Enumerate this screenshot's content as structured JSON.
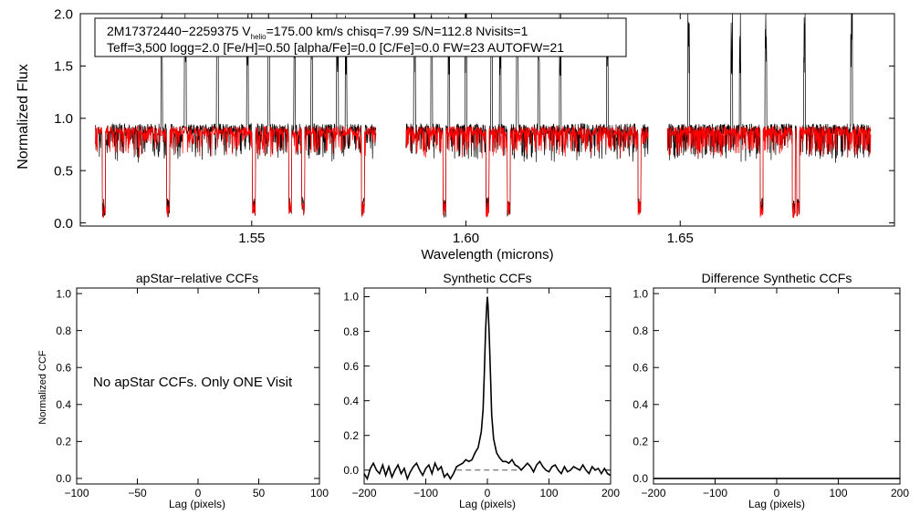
{
  "colors": {
    "axis": "#000000",
    "observed": "#000000",
    "model": "#ff0000",
    "dashed": "#555555"
  },
  "chart_data": [
    {
      "id": "spectrum",
      "type": "line",
      "title": "",
      "xlabel": "Wavelength (microns)",
      "ylabel": "Normalized Flux",
      "xlim": [
        1.51,
        1.7
      ],
      "ylim": [
        -0.03,
        2.0
      ],
      "xticks": [
        1.55,
        1.6,
        1.65
      ],
      "xtick_labels": [
        "1.55",
        "1.60",
        "1.65"
      ],
      "yticks": [
        0.0,
        0.5,
        1.0,
        1.5,
        2.0
      ],
      "ytick_labels": [
        "0.0",
        "0.5",
        "1.0",
        "1.5",
        "2.0"
      ],
      "info_box": {
        "line1_prefix": "2M17372440−2259375  V",
        "line1_sub": "helio",
        "line1_suffix": "=175.00 km/s  chisq=7.99  S/N=112.8  Nvisits=1",
        "line2": "Teff=3,500 logg=2.0 [Fe/H]=0.50 [alpha/Fe]=0.0 [C/Fe]=0.0 FW=23 AUTOFW=21"
      },
      "chips": [
        [
          1.5135,
          1.579
        ],
        [
          1.586,
          1.6425
        ],
        [
          1.647,
          1.6945
        ]
      ],
      "emission_lines": [
        1.529,
        1.5345,
        1.542,
        1.549,
        1.554,
        1.56,
        1.564,
        1.57,
        1.572,
        1.588,
        1.592,
        1.596,
        1.6,
        1.606,
        1.608,
        1.612,
        1.617,
        1.622,
        1.633,
        1.643,
        1.652,
        1.662,
        1.664,
        1.67,
        1.679,
        1.69
      ],
      "absorption_lines": [
        1.5155,
        1.5305,
        1.5505,
        1.559,
        1.562,
        1.576,
        1.595,
        1.605,
        1.61,
        1.6405,
        1.669,
        1.6765,
        1.6775
      ],
      "series": [
        {
          "name": "observed (apStar)",
          "color": "#000000",
          "continuum": 0.9,
          "noise": 0.1
        },
        {
          "name": "synthetic model",
          "color": "#ff0000",
          "continuum": 0.88,
          "noise": 0.09
        }
      ]
    },
    {
      "id": "apstar-ccf",
      "type": "line",
      "title": "apStar−relative CCFs",
      "xlabel": "Lag (pixels)",
      "ylabel": "Normalized CCF",
      "xlim": [
        -100,
        100
      ],
      "ylim": [
        -0.03,
        1.03
      ],
      "xticks": [
        -100,
        -50,
        0,
        50,
        100
      ],
      "xtick_labels": [
        "−100",
        "−50",
        "0",
        "50",
        "100"
      ],
      "yticks": [
        0.0,
        0.2,
        0.4,
        0.6,
        0.8,
        1.0
      ],
      "ytick_labels": [
        "0.0",
        "0.2",
        "0.4",
        "0.6",
        "0.8",
        "1.0"
      ],
      "annotation": "No apStar CCFs.  Only ONE Visit",
      "series": []
    },
    {
      "id": "synthetic-ccf",
      "type": "line",
      "title": "Synthetic CCFs",
      "xlabel": "Lag (pixels)",
      "ylabel": "",
      "xlim": [
        -200,
        200
      ],
      "ylim": [
        -0.08,
        1.05
      ],
      "xticks": [
        -200,
        -100,
        0,
        100,
        200
      ],
      "xtick_labels": [
        "−200",
        "−100",
        "0",
        "100",
        "200"
      ],
      "yticks": [
        0.0,
        0.2,
        0.4,
        0.6,
        0.8,
        1.0
      ],
      "ytick_labels": [
        "0.0",
        "0.2",
        "0.4",
        "0.6",
        "0.8",
        "1.0"
      ],
      "dashed_baseline": {
        "y": 0.0,
        "x": [
          -50,
          50
        ]
      },
      "series": [
        {
          "name": "synthetic CCF",
          "x": [
            -200,
            -195,
            -190,
            -185,
            -180,
            -175,
            -170,
            -165,
            -160,
            -155,
            -150,
            -145,
            -140,
            -135,
            -130,
            -125,
            -120,
            -115,
            -110,
            -105,
            -100,
            -95,
            -90,
            -85,
            -80,
            -75,
            -70,
            -65,
            -60,
            -55,
            -50,
            -45,
            -40,
            -35,
            -30,
            -25,
            -20,
            -15,
            -10,
            -7,
            -5,
            -3,
            -1,
            0,
            1,
            3,
            5,
            7,
            10,
            15,
            20,
            25,
            30,
            35,
            40,
            45,
            50,
            55,
            60,
            65,
            70,
            75,
            80,
            85,
            90,
            95,
            100,
            105,
            110,
            115,
            120,
            125,
            130,
            135,
            140,
            145,
            150,
            155,
            160,
            165,
            170,
            175,
            180,
            185,
            190,
            195,
            200
          ],
          "y": [
            -0.02,
            -0.05,
            0.01,
            0.04,
            0.0,
            -0.02,
            0.03,
            -0.03,
            0.02,
            -0.04,
            0.0,
            0.03,
            -0.02,
            0.01,
            -0.05,
            -0.01,
            0.02,
            0.04,
            0.0,
            -0.03,
            0.01,
            0.03,
            -0.02,
            0.04,
            0.0,
            0.02,
            -0.04,
            -0.02,
            -0.05,
            -0.02,
            0.02,
            0.03,
            0.04,
            0.06,
            0.05,
            0.06,
            0.1,
            0.13,
            0.22,
            0.35,
            0.55,
            0.8,
            0.95,
            1.0,
            0.95,
            0.78,
            0.55,
            0.32,
            0.18,
            0.1,
            0.07,
            0.05,
            0.05,
            0.04,
            0.06,
            0.03,
            0.02,
            0.0,
            0.02,
            0.04,
            0.02,
            -0.01,
            0.03,
            0.05,
            0.02,
            0.0,
            -0.01,
            0.02,
            0.03,
            0.0,
            -0.02,
            0.02,
            -0.01,
            0.0,
            0.02,
            0.01,
            0.0,
            0.03,
            0.0,
            -0.02,
            0.02,
            0.0,
            0.01,
            -0.02,
            0.01,
            -0.02,
            -0.03
          ]
        }
      ]
    },
    {
      "id": "difference-ccf",
      "type": "line",
      "title": "Difference Synthetic CCFs",
      "xlabel": "Lag (pixels)",
      "ylabel": "",
      "xlim": [
        -200,
        200
      ],
      "ylim": [
        -0.03,
        1.03
      ],
      "xticks": [
        -200,
        -100,
        0,
        100,
        200
      ],
      "xtick_labels": [
        "−200",
        "−100",
        "0",
        "100",
        "200"
      ],
      "yticks": [
        0.0,
        0.2,
        0.4,
        0.6,
        0.8,
        1.0
      ],
      "ytick_labels": [
        "0.0",
        "0.2",
        "0.4",
        "0.6",
        "0.8",
        "1.0"
      ],
      "series": [
        {
          "name": "difference CCF",
          "x": [
            -200,
            200
          ],
          "y": [
            0.0,
            0.0
          ]
        }
      ]
    }
  ]
}
